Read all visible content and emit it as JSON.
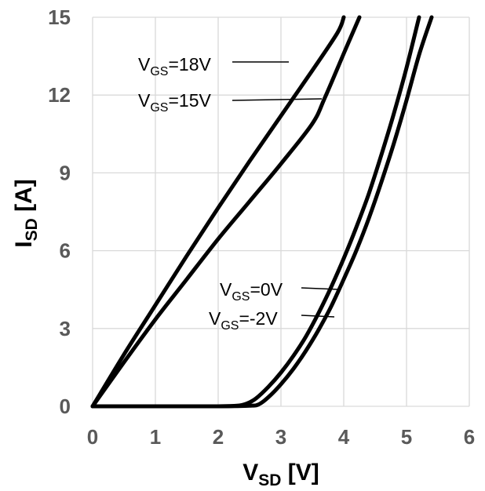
{
  "chart_data": {
    "type": "line",
    "xlabel": {
      "main": "V",
      "sub": "SD",
      "unit": " [V]"
    },
    "ylabel": {
      "main": "I",
      "sub": "SD",
      "unit": " [A]"
    },
    "xlim": [
      0,
      6
    ],
    "ylim": [
      0,
      15
    ],
    "xticks": [
      "0",
      "1",
      "2",
      "3",
      "4",
      "5",
      "6"
    ],
    "yticks": [
      "0",
      "3",
      "6",
      "9",
      "12",
      "15"
    ],
    "grid": true,
    "series": [
      {
        "name": "VGS=18V",
        "label": {
          "main": "V",
          "sub": "GS",
          "rest": "=18V"
        },
        "x": [
          0,
          0.5,
          1,
          1.5,
          2,
          2.5,
          3,
          3.5,
          3.9,
          4.0
        ],
        "y": [
          0,
          2.0,
          3.9,
          5.8,
          7.65,
          9.45,
          11.2,
          12.95,
          14.4,
          15
        ]
      },
      {
        "name": "VGS=15V",
        "label": {
          "main": "V",
          "sub": "GS",
          "rest": "=15V"
        },
        "x": [
          0,
          0.5,
          1,
          1.5,
          2,
          2.5,
          3,
          3.5,
          3.7,
          4.0,
          4.25
        ],
        "y": [
          0,
          1.7,
          3.35,
          4.9,
          6.45,
          7.9,
          9.35,
          10.9,
          11.9,
          13.6,
          15
        ]
      },
      {
        "name": "VGS=0V",
        "label": {
          "main": "V",
          "sub": "GS",
          "rest": "=0V"
        },
        "x": [
          0,
          1,
          2,
          2.3,
          2.45,
          2.6,
          2.8,
          3.0,
          3.2,
          3.4,
          3.6,
          3.8,
          4.0,
          4.2,
          4.4,
          4.6,
          4.8,
          5.0,
          5.2
        ],
        "y": [
          0,
          0,
          0,
          0.02,
          0.1,
          0.3,
          0.75,
          1.3,
          1.95,
          2.7,
          3.6,
          4.6,
          5.7,
          6.9,
          8.2,
          9.7,
          11.3,
          13.05,
          15
        ]
      },
      {
        "name": "VGS=-2V",
        "label": {
          "main": "V",
          "sub": "GS",
          "rest": "=-2V"
        },
        "x": [
          0,
          1,
          2,
          2.5,
          2.65,
          2.8,
          3.0,
          3.2,
          3.4,
          3.6,
          3.8,
          4.0,
          4.2,
          4.4,
          4.6,
          4.8,
          5.0,
          5.2,
          5.4
        ],
        "y": [
          0,
          0,
          0,
          0.02,
          0.08,
          0.35,
          0.85,
          1.45,
          2.15,
          2.95,
          3.85,
          4.9,
          6.0,
          7.25,
          8.65,
          10.15,
          11.8,
          13.55,
          15
        ]
      }
    ]
  }
}
